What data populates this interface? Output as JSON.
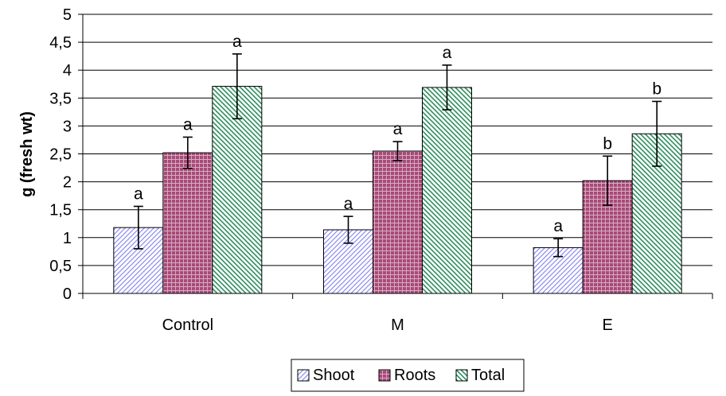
{
  "chart_data": {
    "type": "bar",
    "categories": [
      "Control",
      "M",
      "E"
    ],
    "ylabel": "g (fresh wt)",
    "xlabel": "",
    "ylim": [
      0,
      5
    ],
    "yticks": [
      "0",
      "0,5",
      "1",
      "1,5",
      "2",
      "2,5",
      "3",
      "3,5",
      "4",
      "4,5",
      "5"
    ],
    "grid": true,
    "legend_position": "bottom",
    "series": [
      {
        "name": "Shoot",
        "color": "#9999ff",
        "pattern": "diagonal-up",
        "values": [
          1.18,
          1.14,
          0.82
        ],
        "errors": [
          0.38,
          0.24,
          0.16
        ],
        "letters": [
          "a",
          "a",
          "a"
        ]
      },
      {
        "name": "Roots",
        "color": "#993366",
        "pattern": "grid",
        "values": [
          2.52,
          2.55,
          2.02
        ],
        "errors": [
          0.28,
          0.17,
          0.44
        ],
        "letters": [
          "a",
          "a",
          "b"
        ]
      },
      {
        "name": "Total",
        "color": "#339966",
        "pattern": "diagonal-down",
        "values": [
          3.71,
          3.69,
          2.86
        ],
        "errors": [
          0.58,
          0.4,
          0.58
        ],
        "letters": [
          "a",
          "a",
          "b"
        ]
      }
    ]
  }
}
